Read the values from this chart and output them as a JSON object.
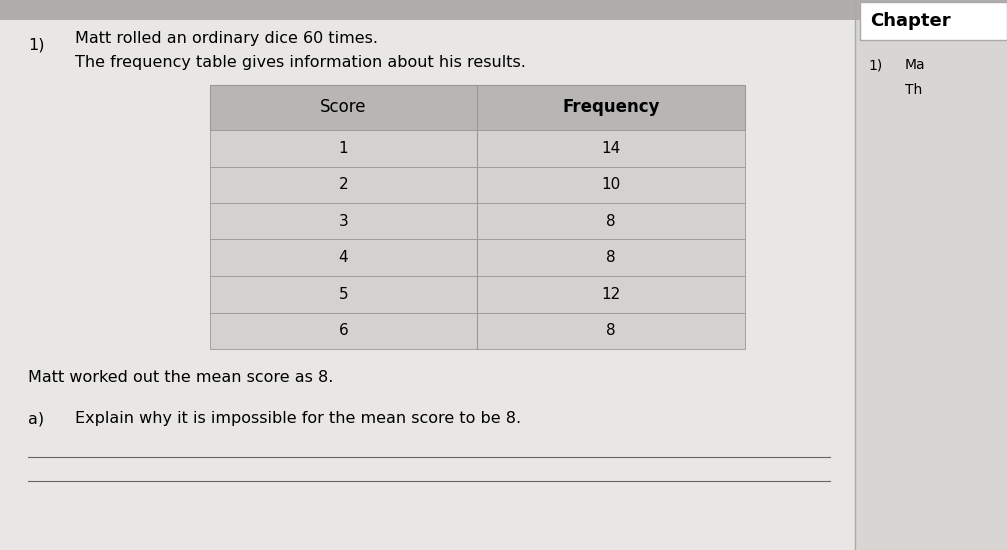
{
  "page_bg": "#e8e7e5",
  "top_bar_color": "#b0adab",
  "right_panel_bg": "#d8d6d3",
  "chapter_box_bg": "#ffffff",
  "chapter_box_border": "#aaaaaa",
  "table_header_bg": "#b8b6b4",
  "table_row_bg": "#d4d2d0",
  "table_border_color": "#999999",
  "question_number": "1)",
  "question_text_line1": "Matt rolled an ordinary dice 60 times.",
  "question_text_line2": "The frequency table gives information about his results.",
  "col_headers": [
    "Score",
    "Frequency"
  ],
  "scores": [
    "1",
    "2",
    "3",
    "4",
    "5",
    "6"
  ],
  "frequencies": [
    "14",
    "10",
    "8",
    "8",
    "12",
    "8"
  ],
  "below_table_text": "Matt worked out the mean score as 8.",
  "part_a_label": "a)",
  "part_a_text": "Explain why it is impossible for the mean score to be 8.",
  "chapter_label": "Chapter",
  "right_q_number": "1)",
  "right_text1": "Ma",
  "right_text2": "Th",
  "font_size_body": 11.5,
  "font_size_table": 11,
  "font_size_table_header": 12,
  "font_size_chapter": 13,
  "font_size_right": 10
}
